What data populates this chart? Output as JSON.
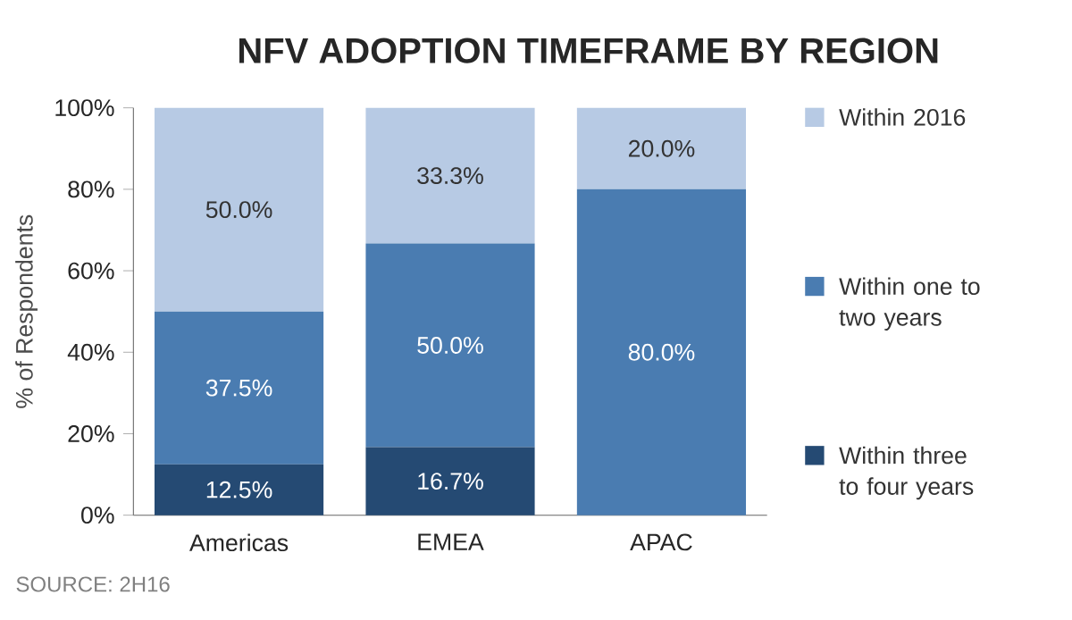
{
  "chart_data": {
    "type": "bar",
    "stacked": true,
    "title": "NFV ADOPTION TIMEFRAME  BY REGION",
    "ylabel": "% of Respondents",
    "categories": [
      "Americas",
      "EMEA",
      "APAC"
    ],
    "series": [
      {
        "name": "Within three to four years",
        "color": "#254a73",
        "values": [
          12.5,
          16.7,
          0
        ],
        "value_labels": [
          "12.5%",
          "16.7%",
          null
        ]
      },
      {
        "name": "Within one to two years",
        "color": "#4a7cb1",
        "values": [
          37.5,
          50.0,
          80.0
        ],
        "value_labels": [
          "37.5%",
          "50.0%",
          "80.0%"
        ]
      },
      {
        "name": "Within 2016",
        "color": "#b7cae4",
        "values": [
          50.0,
          33.3,
          20.0
        ],
        "value_labels": [
          "50.0%",
          "33.3%",
          "20.0%"
        ]
      }
    ],
    "ylim": [
      0,
      100
    ],
    "yticks": [
      {
        "value": 0,
        "label": "0%"
      },
      {
        "value": 20,
        "label": "20%"
      },
      {
        "value": 40,
        "label": "40%"
      },
      {
        "value": 60,
        "label": "60%"
      },
      {
        "value": 80,
        "label": "80%"
      },
      {
        "value": 100,
        "label": "100%"
      }
    ],
    "legend": "right",
    "grid": false,
    "annotations": [
      "SOURCE: 2H16"
    ]
  }
}
